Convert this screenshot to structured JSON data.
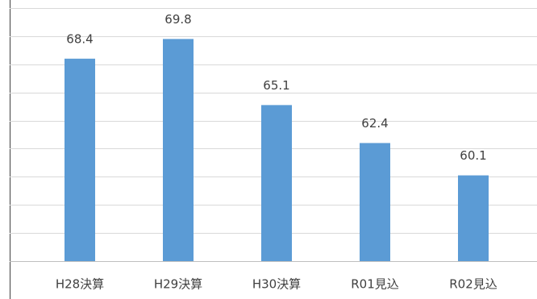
{
  "chart_data": {
    "type": "bar",
    "categories": [
      "H28決算",
      "H29決算",
      "H30決算",
      "R01見込",
      "R02見込"
    ],
    "values": [
      68.4,
      69.8,
      65.1,
      62.4,
      60.1
    ],
    "color": "#5b9bd5",
    "ylim": [
      54,
      72
    ],
    "yticks": [
      54,
      56,
      58,
      60,
      62,
      64,
      66,
      68,
      70,
      72
    ],
    "grid": true
  }
}
